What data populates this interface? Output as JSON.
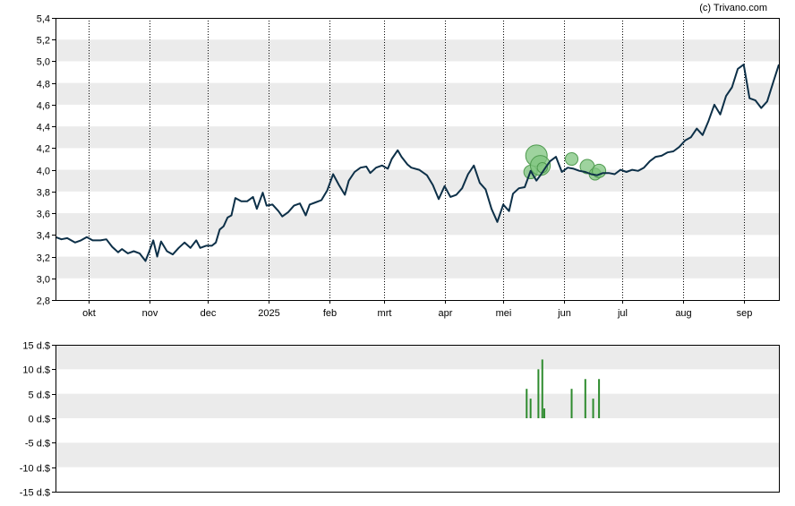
{
  "credit": "(c) Trivano.com",
  "colors": {
    "price_line": "#0d3048",
    "band": "#ebebeb",
    "axis": "#000000",
    "vgrid": "#000000",
    "bubble_fill": "#7ec47e",
    "bubble_stroke": "#4f9a4f",
    "volume_bar": "#2e8b2e"
  },
  "chart_data": [
    {
      "type": "line",
      "name": "price",
      "ylim": [
        2.8,
        5.4
      ],
      "y_ticks": [
        "2,8",
        "3,0",
        "3,2",
        "3,4",
        "3,6",
        "3,8",
        "4,0",
        "4,2",
        "4,4",
        "4,6",
        "4,8",
        "5,0",
        "5,2",
        "5,4"
      ],
      "x_range": [
        "2024-09-14",
        "2025-09-19"
      ],
      "x_ticks": [
        {
          "label": "okt",
          "date": "2024-10-01"
        },
        {
          "label": "nov",
          "date": "2024-11-01"
        },
        {
          "label": "dec",
          "date": "2024-12-01"
        },
        {
          "label": "2025",
          "date": "2025-01-01"
        },
        {
          "label": "feb",
          "date": "2025-02-01"
        },
        {
          "label": "mrt",
          "date": "2025-03-01"
        },
        {
          "label": "apr",
          "date": "2025-04-01"
        },
        {
          "label": "mei",
          "date": "2025-05-01"
        },
        {
          "label": "jun",
          "date": "2025-06-01"
        },
        {
          "label": "jul",
          "date": "2025-07-01"
        },
        {
          "label": "aug",
          "date": "2025-08-01"
        },
        {
          "label": "sep",
          "date": "2025-09-01"
        }
      ],
      "grid": "alternating horizontal bands, dotted vertical lines at month ticks",
      "series": [
        {
          "points": [
            [
              "2024-09-14",
              3.38
            ],
            [
              "2024-09-17",
              3.36
            ],
            [
              "2024-09-20",
              3.37
            ],
            [
              "2024-09-24",
              3.33
            ],
            [
              "2024-09-27",
              3.35
            ],
            [
              "2024-09-30",
              3.38
            ],
            [
              "2024-10-03",
              3.35
            ],
            [
              "2024-10-07",
              3.35
            ],
            [
              "2024-10-10",
              3.36
            ],
            [
              "2024-10-13",
              3.29
            ],
            [
              "2024-10-16",
              3.24
            ],
            [
              "2024-10-18",
              3.27
            ],
            [
              "2024-10-21",
              3.23
            ],
            [
              "2024-10-24",
              3.25
            ],
            [
              "2024-10-27",
              3.23
            ],
            [
              "2024-10-30",
              3.16
            ],
            [
              "2024-11-01",
              3.25
            ],
            [
              "2024-11-03",
              3.35
            ],
            [
              "2024-11-05",
              3.2
            ],
            [
              "2024-11-07",
              3.34
            ],
            [
              "2024-11-10",
              3.25
            ],
            [
              "2024-11-13",
              3.22
            ],
            [
              "2024-11-16",
              3.28
            ],
            [
              "2024-11-19",
              3.33
            ],
            [
              "2024-11-22",
              3.28
            ],
            [
              "2024-11-25",
              3.35
            ],
            [
              "2024-11-27",
              3.28
            ],
            [
              "2024-11-30",
              3.3
            ],
            [
              "2024-12-03",
              3.3
            ],
            [
              "2024-12-05",
              3.33
            ],
            [
              "2024-12-07",
              3.45
            ],
            [
              "2024-12-09",
              3.48
            ],
            [
              "2024-12-11",
              3.56
            ],
            [
              "2024-12-13",
              3.58
            ],
            [
              "2024-12-15",
              3.74
            ],
            [
              "2024-12-18",
              3.71
            ],
            [
              "2024-12-21",
              3.71
            ],
            [
              "2024-12-24",
              3.75
            ],
            [
              "2024-12-26",
              3.64
            ],
            [
              "2024-12-29",
              3.79
            ],
            [
              "2024-12-31",
              3.67
            ],
            [
              "2025-01-03",
              3.68
            ],
            [
              "2025-01-06",
              3.62
            ],
            [
              "2025-01-08",
              3.57
            ],
            [
              "2025-01-11",
              3.61
            ],
            [
              "2025-01-14",
              3.67
            ],
            [
              "2025-01-17",
              3.69
            ],
            [
              "2025-01-20",
              3.58
            ],
            [
              "2025-01-22",
              3.68
            ],
            [
              "2025-01-25",
              3.7
            ],
            [
              "2025-01-28",
              3.72
            ],
            [
              "2025-01-31",
              3.81
            ],
            [
              "2025-02-03",
              3.96
            ],
            [
              "2025-02-06",
              3.86
            ],
            [
              "2025-02-09",
              3.77
            ],
            [
              "2025-02-11",
              3.9
            ],
            [
              "2025-02-14",
              3.98
            ],
            [
              "2025-02-17",
              4.02
            ],
            [
              "2025-02-20",
              4.03
            ],
            [
              "2025-02-22",
              3.97
            ],
            [
              "2025-02-25",
              4.02
            ],
            [
              "2025-02-28",
              4.04
            ],
            [
              "2025-03-03",
              4.01
            ],
            [
              "2025-03-05",
              4.1
            ],
            [
              "2025-03-08",
              4.18
            ],
            [
              "2025-03-10",
              4.12
            ],
            [
              "2025-03-13",
              4.05
            ],
            [
              "2025-03-15",
              4.02
            ],
            [
              "2025-03-19",
              4.0
            ],
            [
              "2025-03-23",
              3.95
            ],
            [
              "2025-03-26",
              3.86
            ],
            [
              "2025-03-29",
              3.73
            ],
            [
              "2025-04-01",
              3.85
            ],
            [
              "2025-04-04",
              3.75
            ],
            [
              "2025-04-07",
              3.77
            ],
            [
              "2025-04-10",
              3.83
            ],
            [
              "2025-04-13",
              3.96
            ],
            [
              "2025-04-16",
              4.04
            ],
            [
              "2025-04-19",
              3.88
            ],
            [
              "2025-04-22",
              3.82
            ],
            [
              "2025-04-25",
              3.64
            ],
            [
              "2025-04-28",
              3.52
            ],
            [
              "2025-05-01",
              3.68
            ],
            [
              "2025-05-04",
              3.62
            ],
            [
              "2025-05-06",
              3.78
            ],
            [
              "2025-05-09",
              3.83
            ],
            [
              "2025-05-12",
              3.84
            ],
            [
              "2025-05-15",
              3.99
            ],
            [
              "2025-05-18",
              3.9
            ],
            [
              "2025-05-20",
              3.95
            ],
            [
              "2025-05-23",
              4.03
            ],
            [
              "2025-05-25",
              4.08
            ],
            [
              "2025-05-28",
              4.12
            ],
            [
              "2025-05-31",
              3.98
            ],
            [
              "2025-06-03",
              4.02
            ],
            [
              "2025-06-06",
              4.01
            ],
            [
              "2025-06-09",
              3.99
            ],
            [
              "2025-06-12",
              3.98
            ],
            [
              "2025-06-15",
              3.96
            ],
            [
              "2025-06-18",
              3.95
            ],
            [
              "2025-06-21",
              3.97
            ],
            [
              "2025-06-24",
              3.97
            ],
            [
              "2025-06-27",
              3.96
            ],
            [
              "2025-06-30",
              4.0
            ],
            [
              "2025-07-03",
              3.98
            ],
            [
              "2025-07-06",
              4.0
            ],
            [
              "2025-07-09",
              3.99
            ],
            [
              "2025-07-12",
              4.02
            ],
            [
              "2025-07-15",
              4.08
            ],
            [
              "2025-07-18",
              4.12
            ],
            [
              "2025-07-21",
              4.13
            ],
            [
              "2025-07-24",
              4.16
            ],
            [
              "2025-07-27",
              4.17
            ],
            [
              "2025-07-30",
              4.21
            ],
            [
              "2025-08-02",
              4.27
            ],
            [
              "2025-08-05",
              4.3
            ],
            [
              "2025-08-08",
              4.38
            ],
            [
              "2025-08-11",
              4.32
            ],
            [
              "2025-08-14",
              4.45
            ],
            [
              "2025-08-17",
              4.6
            ],
            [
              "2025-08-20",
              4.51
            ],
            [
              "2025-08-23",
              4.68
            ],
            [
              "2025-08-26",
              4.76
            ],
            [
              "2025-08-29",
              4.93
            ],
            [
              "2025-09-01",
              4.97
            ],
            [
              "2025-09-04",
              4.66
            ],
            [
              "2025-09-07",
              4.64
            ],
            [
              "2025-09-10",
              4.57
            ],
            [
              "2025-09-13",
              4.63
            ],
            [
              "2025-09-16",
              4.8
            ],
            [
              "2025-09-19",
              4.97
            ]
          ]
        }
      ],
      "bubbles": [
        {
          "date": "2025-05-15",
          "value": 3.98,
          "weight": 0.5
        },
        {
          "date": "2025-05-18",
          "value": 4.13,
          "weight": 1.0
        },
        {
          "date": "2025-05-20",
          "value": 4.04,
          "weight": 0.9
        },
        {
          "date": "2025-05-21",
          "value": 4.02,
          "weight": 0.3
        },
        {
          "date": "2025-06-05",
          "value": 4.1,
          "weight": 0.45
        },
        {
          "date": "2025-06-13",
          "value": 4.03,
          "weight": 0.55
        },
        {
          "date": "2025-06-17",
          "value": 3.96,
          "weight": 0.4
        },
        {
          "date": "2025-06-19",
          "value": 3.99,
          "weight": 0.5
        }
      ]
    },
    {
      "type": "bar",
      "name": "volume",
      "ylim": [
        -15,
        15
      ],
      "y_ticks": [
        "-15 d.$",
        "-10 d.$",
        "-5 d.$",
        "0 d.$",
        "5 d.$",
        "10 d.$",
        "15 d.$"
      ],
      "bars": [
        {
          "date": "2025-05-13",
          "value": 6
        },
        {
          "date": "2025-05-15",
          "value": 4
        },
        {
          "date": "2025-05-19",
          "value": 10
        },
        {
          "date": "2025-05-21",
          "value": 12
        },
        {
          "date": "2025-05-22",
          "value": 2
        },
        {
          "date": "2025-06-05",
          "value": 6
        },
        {
          "date": "2025-06-12",
          "value": 8
        },
        {
          "date": "2025-06-16",
          "value": 4
        },
        {
          "date": "2025-06-19",
          "value": 8
        }
      ]
    }
  ]
}
